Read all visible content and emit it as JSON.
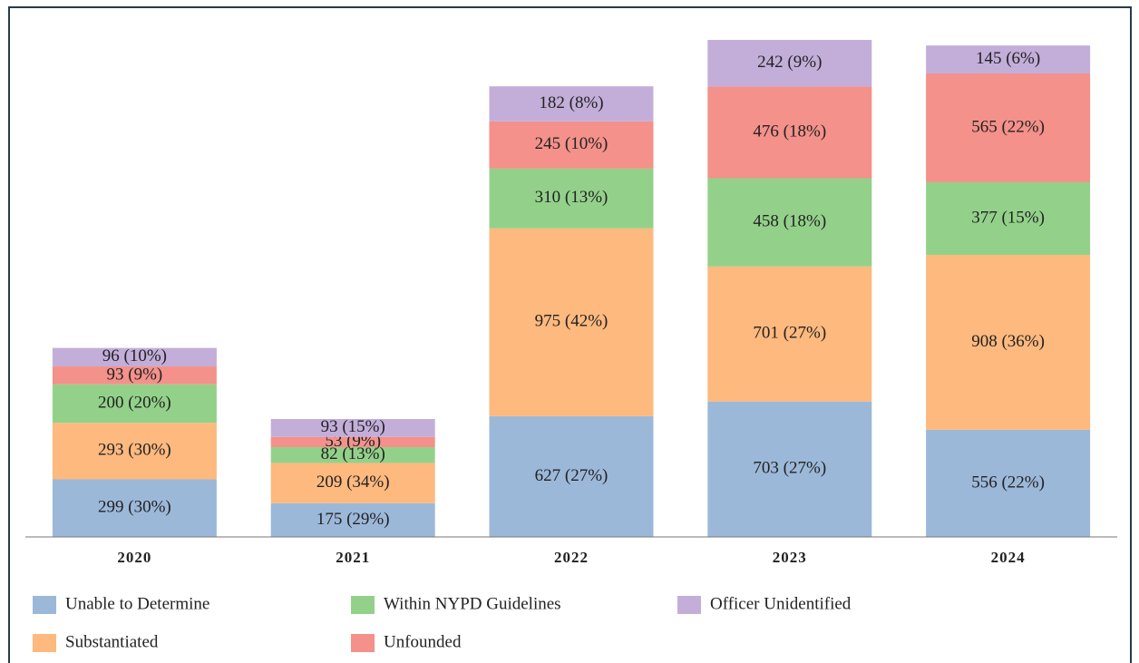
{
  "chart_data": {
    "type": "stacked_bar",
    "categories": [
      "2020",
      "2021",
      "2022",
      "2023",
      "2024"
    ],
    "series": [
      {
        "name": "Unable to Determine",
        "color": "#9cb8d9",
        "values": [
          299,
          175,
          627,
          703,
          556
        ],
        "value_labels": [
          "299 (30%)",
          "175 (29%)",
          "627 (27%)",
          "703 (27%)",
          "556 (22%)"
        ]
      },
      {
        "name": "Substantiated",
        "color": "#fdb97e",
        "values": [
          293,
          209,
          975,
          701,
          908
        ],
        "value_labels": [
          "293 (30%)",
          "209 (34%)",
          "975 (42%)",
          "701 (27%)",
          "908 (36%)"
        ]
      },
      {
        "name": "Within NYPD Guidelines",
        "color": "#93d18a",
        "values": [
          200,
          82,
          310,
          458,
          377
        ],
        "value_labels": [
          "200 (20%)",
          "82 (13%)",
          "310 (13%)",
          "458 (18%)",
          "377 (15%)"
        ]
      },
      {
        "name": "Unfounded",
        "color": "#f3918a",
        "values": [
          93,
          53,
          245,
          476,
          565
        ],
        "value_labels": [
          "93 (9%)",
          "53 (9%)",
          "245 (10%)",
          "476 (18%)",
          "565 (22%)"
        ]
      },
      {
        "name": "Officer Unidentified",
        "color": "#c3aed9",
        "values": [
          96,
          93,
          182,
          242,
          145
        ],
        "value_labels": [
          "96 (10%)",
          "93 (15%)",
          "182 (8%)",
          "242 (9%)",
          "145 (6%)"
        ]
      }
    ]
  }
}
